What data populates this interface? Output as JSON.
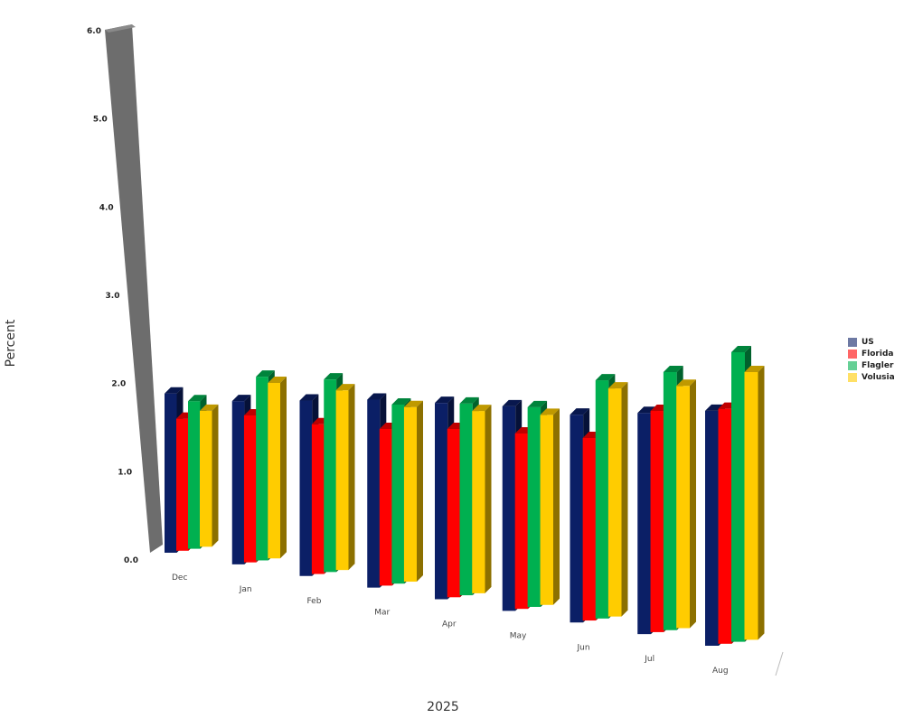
{
  "chart_data": {
    "type": "bar",
    "title": "",
    "xlabel": "2025",
    "ylabel": "Percent",
    "ylim": [
      0,
      6
    ],
    "yticks": [
      "0.0",
      "1.0",
      "2.0",
      "3.0",
      "4.0",
      "5.0",
      "6.0"
    ],
    "categories": [
      "Dec",
      "Jan",
      "Feb",
      "Mar",
      "Apr",
      "May",
      "Jun",
      "Jul",
      "Aug"
    ],
    "series": [
      {
        "name": "US",
        "color": "#0b1f66",
        "values": [
          4.1,
          4.0,
          4.1,
          4.2,
          4.2,
          4.2,
          4.1,
          4.2,
          4.3
        ]
      },
      {
        "name": "Florida",
        "color": "#ff0000",
        "values": [
          3.4,
          3.6,
          3.5,
          3.5,
          3.6,
          3.6,
          3.6,
          4.2,
          4.3
        ]
      },
      {
        "name": "Flagler",
        "color": "#00b050",
        "values": [
          3.8,
          4.5,
          4.5,
          4.0,
          4.1,
          4.1,
          4.7,
          4.9,
          5.3
        ]
      },
      {
        "name": "Volusia",
        "color": "#ffcc00",
        "values": [
          3.5,
          4.3,
          4.2,
          3.9,
          3.9,
          3.9,
          4.5,
          4.6,
          4.9
        ]
      }
    ],
    "legend_position": "right",
    "grid": false,
    "style": "3d"
  }
}
